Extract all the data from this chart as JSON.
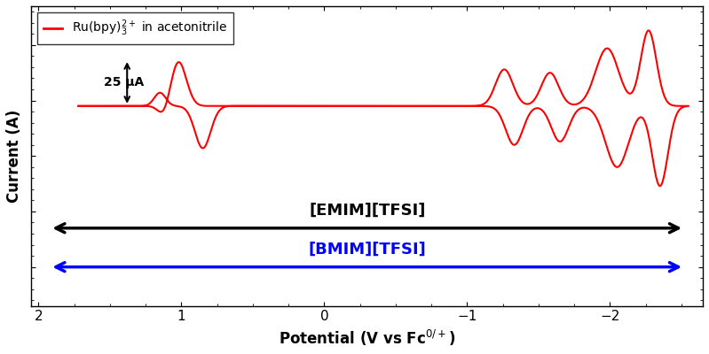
{
  "xlim": [
    2.05,
    -2.65
  ],
  "xlabel": "Potential (V vs Fc$^{0/+}$)",
  "ylabel": "Current (A)",
  "legend_label": "Ru(bpy)$_3^{2+}$ in acetonitrile",
  "line_color": "#ff0000",
  "annotation_text": "25 μA",
  "emim_label": "[EMIM][TFSI]",
  "bmim_label": "[BMIM][TFSI]",
  "emim_color": "#000000",
  "bmim_color": "#0000ff",
  "xticks": [
    2,
    1,
    0,
    -1,
    -2
  ],
  "background_color": "#ffffff"
}
